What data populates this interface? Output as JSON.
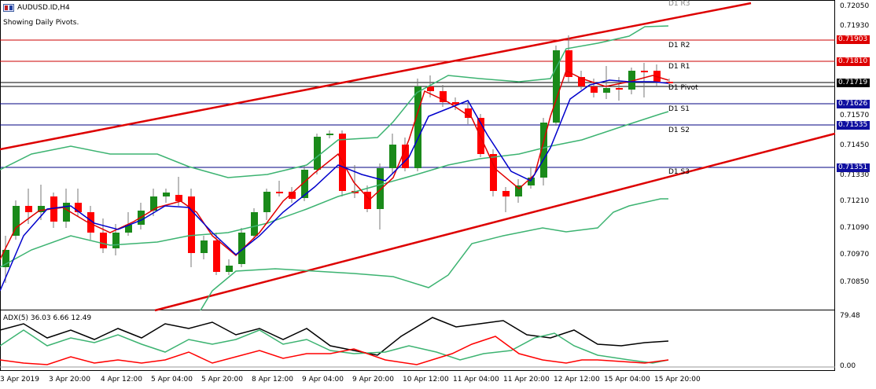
{
  "header": {
    "symbol_title": "AUDUSD.ID,H4",
    "subtitle": "Showing Daily Pivots."
  },
  "pivots": {
    "r3": "D1 R3",
    "r2": "D1 R2",
    "r1": "D1 R1",
    "pivot": "D1 Pivot",
    "s1": "D1 S1",
    "s2": "D1 S2",
    "s3": "D1 S3"
  },
  "price_tags": {
    "r2": "0.71903",
    "r1": "0.71810",
    "current": "0.71719",
    "s1": "0.71626",
    "s2": "0.71535",
    "s3": "0.71351"
  },
  "price_axis": [
    "0.72050",
    "0.71930",
    "0.71690",
    "0.71570",
    "0.71450",
    "0.71330",
    "0.71210",
    "0.71090",
    "0.70970",
    "0.70850"
  ],
  "adx": {
    "label": "ADX(5) 36.03 6.66 12.49",
    "max": "79.48",
    "min": "0.00"
  },
  "time_axis": [
    "3 Apr 2019",
    "3 Apr 20:00",
    "4 Apr 12:00",
    "5 Apr 04:00",
    "5 Apr 20:00",
    "8 Apr 12:00",
    "9 Apr 04:00",
    "9 Apr 20:00",
    "10 Apr 12:00",
    "11 Apr 04:00",
    "11 Apr 20:00",
    "12 Apr 12:00",
    "15 Apr 04:00",
    "15 Apr 20:00"
  ],
  "colors": {
    "bull": "#1a8a1a",
    "bear": "#ff0000",
    "pivot_r": "#cc0000",
    "pivot_s": "#000080",
    "bollinger": "#3cb371",
    "ma_fast": "#e00000",
    "ma_slow": "#0000cc",
    "channel": "#dd0000"
  }
}
